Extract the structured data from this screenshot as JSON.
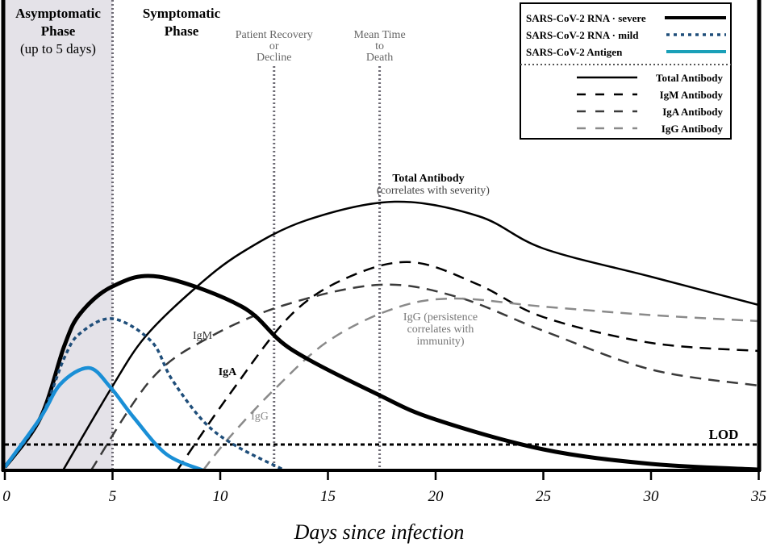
{
  "chart_data": {
    "type": "line",
    "xlabel": "Days since infection",
    "ylabel": "",
    "xlim": [
      0,
      35
    ],
    "x_ticks": [
      0,
      5,
      10,
      15,
      20,
      25,
      30,
      35
    ],
    "grid": false,
    "legend_position": "top-right",
    "phases": {
      "asymptomatic": {
        "title": "Asymptomatic Phase",
        "subtitle": "(up to 5 days)",
        "range": [
          0,
          5
        ],
        "shade_color": "#e4e2e8"
      },
      "symptomatic": {
        "title": "Symptomatic Phase"
      }
    },
    "markers": [
      {
        "label": "Patient Recovery or Decline",
        "lines": [
          "Patient Recovery",
          "or",
          "Decline"
        ],
        "x": 12.5
      },
      {
        "label": "Mean Time to Death",
        "lines": [
          "Mean Time",
          "to",
          "Death"
        ],
        "x": 17.4
      }
    ],
    "phase_boundary_x": 5,
    "lod": {
      "label": "LOD",
      "level": 6.4
    },
    "series": [
      {
        "name": "SARS-CoV-2 RNA · severe",
        "color": "#000000",
        "style": "solid-thick",
        "points": [
          [
            0,
            0.8
          ],
          [
            1.65,
            13
          ],
          [
            2.77,
            31
          ],
          [
            3.52,
            39
          ],
          [
            5,
            45.6
          ],
          [
            7.15,
            48
          ],
          [
            11,
            40.6
          ],
          [
            13.3,
            30
          ],
          [
            17.4,
            18.6
          ],
          [
            20,
            12.6
          ],
          [
            25,
            5.2
          ],
          [
            30,
            1.6
          ],
          [
            35,
            0.2
          ]
        ]
      },
      {
        "name": "SARS-CoV-2 RNA · mild",
        "color": "#1f4e7a",
        "style": "dotted",
        "points": [
          [
            0,
            0.8
          ],
          [
            1.65,
            13
          ],
          [
            2.77,
            28
          ],
          [
            3.5,
            34
          ],
          [
            5,
            37.6
          ],
          [
            6.8,
            32
          ],
          [
            7.75,
            22.6
          ],
          [
            9.25,
            12
          ],
          [
            10.75,
            6
          ],
          [
            13,
            0
          ]
        ]
      },
      {
        "name": "SARS-CoV-2 Antigen",
        "color": "#1a8fd6",
        "legend_color": "#1aa0b8",
        "style": "solid",
        "points": [
          [
            0,
            0.8
          ],
          [
            1.65,
            13
          ],
          [
            2.6,
            21.5
          ],
          [
            3.9,
            25.4
          ],
          [
            4.9,
            20.6
          ],
          [
            6,
            13
          ],
          [
            7.5,
            4
          ],
          [
            9.2,
            0
          ]
        ]
      },
      {
        "name": "Total Antibody",
        "color": "#000000",
        "style": "solid",
        "points": [
          [
            2.7,
            0
          ],
          [
            4.9,
            20
          ],
          [
            6.5,
            33
          ],
          [
            8.8,
            45
          ],
          [
            11,
            54
          ],
          [
            14,
            62
          ],
          [
            18.1,
            66.6
          ],
          [
            22,
            63
          ],
          [
            25,
            55
          ],
          [
            30,
            48
          ],
          [
            35,
            41
          ]
        ]
      },
      {
        "name": "IgM Antibody",
        "color": "#000000",
        "style": "dash",
        "points": [
          [
            8,
            0
          ],
          [
            10.4,
            18.6
          ],
          [
            13.3,
            38.6
          ],
          [
            16,
            48
          ],
          [
            18.9,
            51.6
          ],
          [
            22,
            46
          ],
          [
            25,
            38
          ],
          [
            30,
            31.6
          ],
          [
            35,
            29.6
          ]
        ]
      },
      {
        "name": "IgA Antibody",
        "color": "#3a3a3a",
        "style": "dash",
        "points": [
          [
            4,
            0
          ],
          [
            6.8,
            22.6
          ],
          [
            9.5,
            33
          ],
          [
            13,
            41
          ],
          [
            17.4,
            46
          ],
          [
            21,
            43
          ],
          [
            25,
            34.6
          ],
          [
            30,
            25
          ],
          [
            35,
            21
          ]
        ]
      },
      {
        "name": "IgG Antibody",
        "color": "#8a8a8a",
        "style": "dash",
        "points": [
          [
            9.2,
            0
          ],
          [
            10.4,
            8
          ],
          [
            12.5,
            20
          ],
          [
            15,
            32
          ],
          [
            18,
            40
          ],
          [
            20.8,
            42.6
          ],
          [
            25,
            40.6
          ],
          [
            30,
            38.5
          ],
          [
            35,
            37
          ]
        ]
      }
    ],
    "annotations": {
      "total": {
        "title": "Total Antibody",
        "note": "(correlates with severity)"
      },
      "igg_note": [
        "IgG (persistence",
        "correlates with",
        "immunity)"
      ],
      "igm": "IgM",
      "iga": "IgA",
      "igg": "IgG"
    }
  }
}
